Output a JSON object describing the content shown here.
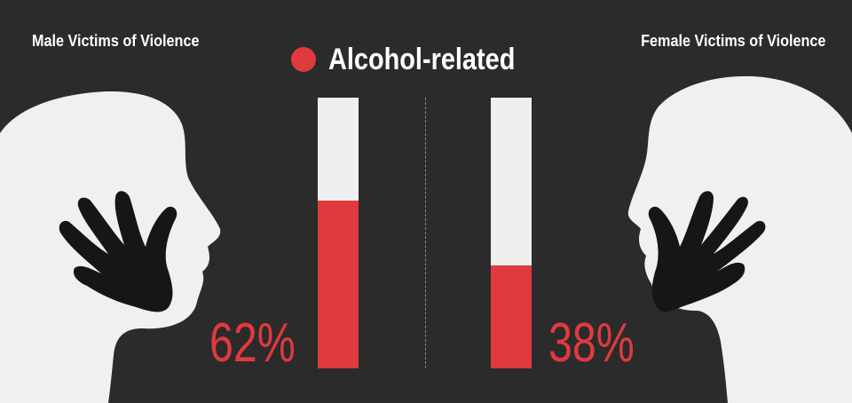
{
  "chart_data": {
    "type": "bar",
    "categories": [
      "Male Victims of Violence",
      "Female Victims of Violence"
    ],
    "series": [
      {
        "name": "Alcohol-related",
        "values": [
          62,
          38
        ]
      }
    ],
    "value_labels": [
      "62%",
      "38%"
    ],
    "ylim": [
      0,
      100
    ]
  },
  "labels": {
    "male_title": "Male Victims of Violence",
    "female_title": "Female Victims of Violence",
    "legend": "Alcohol-related"
  },
  "colors": {
    "background": "#2b2b2b",
    "accent_red": "#e03a3e",
    "bar_track": "#efefef",
    "silhouette": "#f0f0f0",
    "hand": "#161616"
  },
  "icons": [
    "male-head-silhouette-icon",
    "female-head-silhouette-icon",
    "hand-icon"
  ]
}
